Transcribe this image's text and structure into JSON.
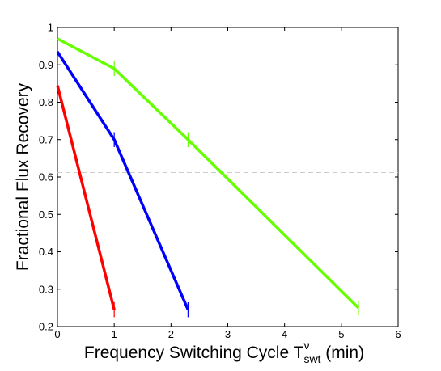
{
  "chart_data": {
    "type": "line",
    "title": "",
    "xlabel": "Frequency Switching Cycle T",
    "xlabel_superscript": "ν",
    "xlabel_subscript": "swt",
    "xlabel_suffix": " (min)",
    "ylabel": "Fractional Flux Recovery",
    "xlim": [
      0,
      6
    ],
    "ylim": [
      0.2,
      1
    ],
    "xticks": [
      0,
      1,
      2,
      3,
      4,
      5,
      6
    ],
    "xtick_labels": [
      "0",
      "1",
      "2",
      "3",
      "4",
      "5",
      "6"
    ],
    "yticks": [
      0.2,
      0.3,
      0.4,
      0.5,
      0.6,
      0.7,
      0.8,
      0.9,
      1
    ],
    "ytick_labels": [
      "0.2",
      "0.3",
      "0.4",
      "0.5",
      "0.6",
      "0.7",
      "0.8",
      "0.9",
      "1"
    ],
    "grid": false,
    "reference_line": {
      "y": 0.612,
      "color": "#cccccc",
      "style": "dashed"
    },
    "series": [
      {
        "color": "#ff0000",
        "x": [
          0,
          1
        ],
        "y": [
          0.845,
          0.245
        ],
        "error_x": [
          1
        ],
        "error_half": 0.02
      },
      {
        "color": "#0000ff",
        "x": [
          0,
          1,
          2.3
        ],
        "y": [
          0.935,
          0.7,
          0.245
        ],
        "error_x": [
          1,
          2.3
        ],
        "error_half": 0.02
      },
      {
        "color": "#66ff00",
        "x": [
          0,
          1,
          2.3,
          5.3
        ],
        "y": [
          0.97,
          0.89,
          0.7,
          0.25
        ],
        "error_x": [
          1,
          2.3,
          5.3
        ],
        "error_half": 0.02
      }
    ]
  }
}
